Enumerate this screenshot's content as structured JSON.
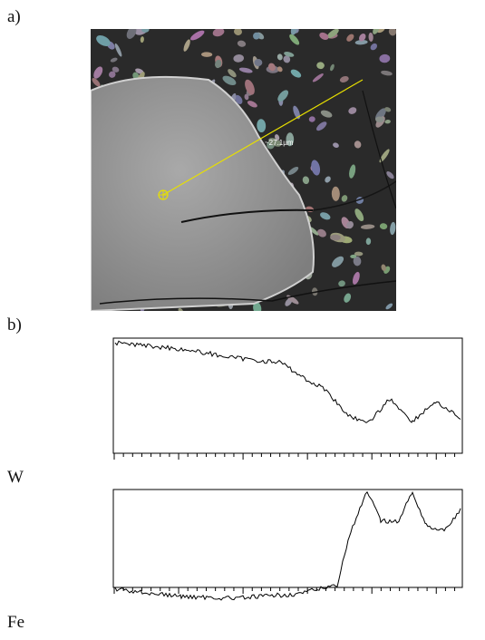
{
  "panel_a": {
    "label": "a)",
    "scale_label": "~27.1µm"
  },
  "panel_b": {
    "label": "b)",
    "profiles": [
      {
        "element": "W"
      },
      {
        "element": "Fe"
      }
    ]
  }
}
